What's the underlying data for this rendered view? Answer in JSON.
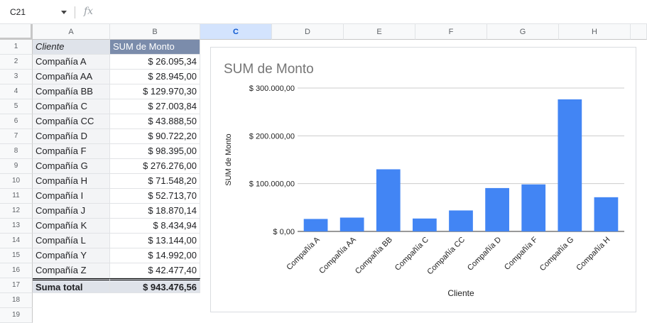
{
  "formula_bar": {
    "name_box": "C21",
    "fx": "fx"
  },
  "columns": [
    "A",
    "B",
    "C",
    "D",
    "E",
    "F",
    "G",
    "H"
  ],
  "selected_column": "C",
  "row_numbers": [
    "1",
    "2",
    "3",
    "4",
    "5",
    "6",
    "7",
    "8",
    "9",
    "10",
    "11",
    "12",
    "13",
    "14",
    "15",
    "16",
    "17",
    "18",
    "19"
  ],
  "pivot": {
    "header_a": "Cliente",
    "header_b": "SUM de Monto",
    "rows": [
      {
        "name": "Compañía A",
        "value": "$ 26.095,34"
      },
      {
        "name": "Compañía AA",
        "value": "$ 28.945,00"
      },
      {
        "name": "Compañía BB",
        "value": "$ 129.970,30"
      },
      {
        "name": "Compañía C",
        "value": "$ 27.003,84"
      },
      {
        "name": "Compañía CC",
        "value": "$ 43.888,50"
      },
      {
        "name": "Compañía D",
        "value": "$ 90.722,20"
      },
      {
        "name": "Compañía F",
        "value": "$ 98.395,00"
      },
      {
        "name": "Compañía G",
        "value": "$ 276.276,00"
      },
      {
        "name": "Compañía H",
        "value": "$ 71.548,20"
      },
      {
        "name": "Compañía I",
        "value": "$ 52.713,70"
      },
      {
        "name": "Compañía J",
        "value": "$ 18.870,14"
      },
      {
        "name": "Compañía K",
        "value": "$ 8.434,94"
      },
      {
        "name": "Compañía L",
        "value": "$ 13.144,00"
      },
      {
        "name": "Compañía Y",
        "value": "$ 14.992,00"
      },
      {
        "name": "Compañía Z",
        "value": "$ 42.477,40"
      }
    ],
    "total_label": "Suma total",
    "total_value": "$ 943.476,56"
  },
  "chart_data": {
    "type": "bar",
    "title": "SUM de Monto",
    "xlabel": "Cliente",
    "ylabel": "SUM de Monto",
    "categories": [
      "Compañía A",
      "Compañía AA",
      "Compañía BB",
      "Compañía C",
      "Compañía CC",
      "Compañía D",
      "Compañía F",
      "Compañía G",
      "Compañía H"
    ],
    "values": [
      26095.34,
      28945.0,
      129970.3,
      27003.84,
      43888.5,
      90722.2,
      98395.0,
      276276.0,
      71548.2
    ],
    "ylim": [
      0,
      300000
    ],
    "yticks": [
      0,
      100000,
      200000,
      300000
    ],
    "ytick_labels": [
      "$ 0,00",
      "$ 100.000,00",
      "$ 200.000,00",
      "$ 300.000,00"
    ],
    "grid": true,
    "legend": "none",
    "bar_color": "#4285f4"
  }
}
